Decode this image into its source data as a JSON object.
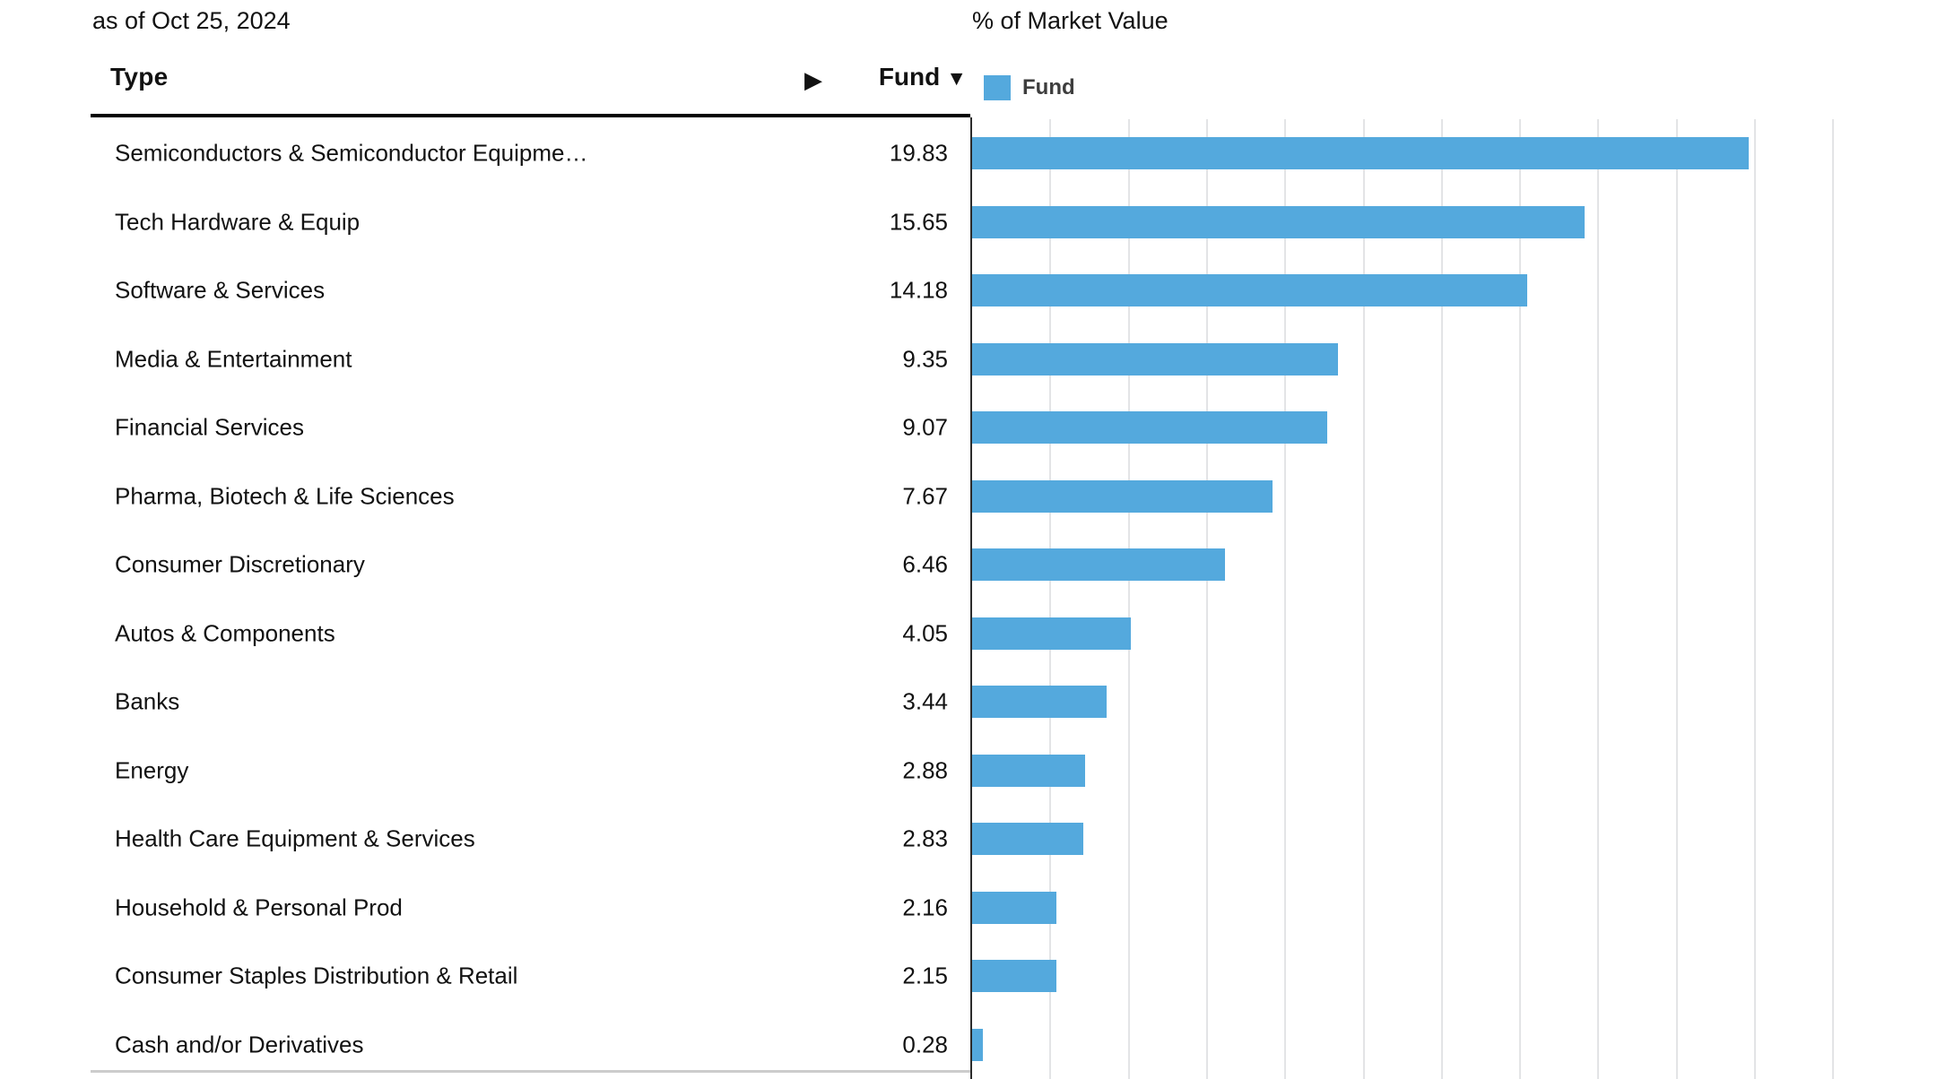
{
  "page": {
    "as_of": "as of Oct 25, 2024"
  },
  "table": {
    "type_header": "Type",
    "fund_header": "Fund",
    "sort_indicator": "▼",
    "expand_arrow": "▶",
    "rows": [
      {
        "type": "Semiconductors & Semiconductor Equipme…",
        "fund": "19.83"
      },
      {
        "type": "Tech Hardware & Equip",
        "fund": "15.65"
      },
      {
        "type": "Software & Services",
        "fund": "14.18"
      },
      {
        "type": "Media & Entertainment",
        "fund": "9.35"
      },
      {
        "type": "Financial Services",
        "fund": "9.07"
      },
      {
        "type": "Pharma, Biotech & Life Sciences",
        "fund": "7.67"
      },
      {
        "type": "Consumer Discretionary",
        "fund": "6.46"
      },
      {
        "type": "Autos & Components",
        "fund": "4.05"
      },
      {
        "type": "Banks",
        "fund": "3.44"
      },
      {
        "type": "Energy",
        "fund": "2.88"
      },
      {
        "type": "Health Care Equipment & Services",
        "fund": "2.83"
      },
      {
        "type": "Household & Personal Prod",
        "fund": "2.16"
      },
      {
        "type": "Consumer Staples Distribution & Retail",
        "fund": "2.15"
      },
      {
        "type": "Cash and/or Derivatives",
        "fund": "0.28"
      }
    ]
  },
  "legend": {
    "label": "Fund",
    "swatch_color": "#54A9DD"
  },
  "chart_data": {
    "type": "bar",
    "orientation": "horizontal",
    "title": "% of Market Value",
    "legend_entries": [
      "Fund"
    ],
    "legend_position": "top",
    "grid": true,
    "categories": [
      "Semiconductors & Semiconductor Equipme…",
      "Tech Hardware & Equip",
      "Software & Services",
      "Media & Entertainment",
      "Financial Services",
      "Pharma, Biotech & Life Sciences",
      "Consumer Discretionary",
      "Autos & Components",
      "Banks",
      "Energy",
      "Health Care Equipment & Services",
      "Household & Personal Prod",
      "Consumer Staples Distribution & Retail",
      "Cash and/or Derivatives"
    ],
    "series": [
      {
        "name": "Fund",
        "values": [
          19.83,
          15.65,
          14.18,
          9.35,
          9.07,
          7.67,
          6.46,
          4.05,
          3.44,
          2.88,
          2.83,
          2.16,
          2.15,
          0.28
        ]
      }
    ],
    "xlabel": "% of Market Value",
    "ylabel": "Type",
    "xlim": [
      0,
      24.9
    ],
    "gridline_step": 2,
    "gridline_max": 22,
    "bar_color": "#54A9DD",
    "gridline_color": "#e3e4e6"
  }
}
